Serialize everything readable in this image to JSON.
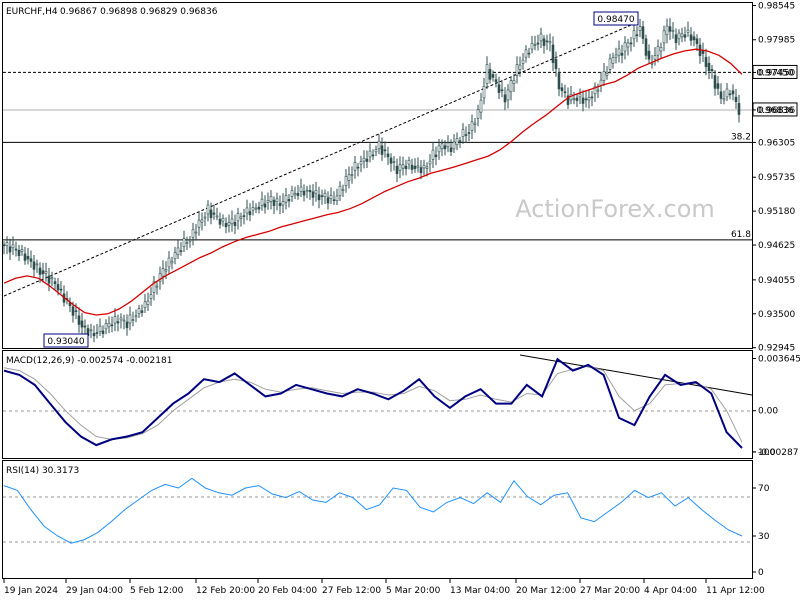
{
  "header": {
    "symbol": "EURCHF,H4",
    "ohlc": "0.96867 0.96898 0.96829 0.96836"
  },
  "watermark": "ActionForex.com",
  "colors": {
    "candles": "#2f4f4f",
    "moving_average": "#d40000",
    "macd_line": "#000080",
    "signal_line": "#a0a0a0",
    "rsi_line": "#1e90ff",
    "background": "#ffffff"
  },
  "chart_data": [
    {
      "type": "candlestick",
      "title": "EURCHF,H4",
      "ylim": [
        0.9294,
        0.9857
      ],
      "y_ticks": [
        "0.98545",
        "0.97985",
        "0.97450",
        "0.96836",
        "0.96305",
        "0.95735",
        "0.95180",
        "0.94625",
        "0.94055",
        "0.93500",
        "0.92945"
      ],
      "x_ticks": [
        "19 Jan 2024",
        "29 Jan 04:00",
        "5 Feb 12:00",
        "12 Feb 20:00",
        "20 Feb 04:00",
        "27 Feb 12:00",
        "5 Mar 20:00",
        "13 Mar 04:00",
        "20 Mar 12:00",
        "27 Mar 20:00",
        "4 Apr 04:00",
        "11 Apr 12:00"
      ],
      "series": [
        {
          "values": [
            0.9463,
            0.9458,
            0.9452,
            0.944,
            0.9425,
            0.9412,
            0.9398,
            0.9375,
            0.9355,
            0.933,
            0.9318,
            0.9322,
            0.9332,
            0.934,
            0.9335,
            0.935,
            0.9365,
            0.9395,
            0.942,
            0.944,
            0.946,
            0.9475,
            0.95,
            0.952,
            0.9505,
            0.9495,
            0.9502,
            0.9515,
            0.9522,
            0.953,
            0.9536,
            0.9528,
            0.9542,
            0.955,
            0.9552,
            0.9545,
            0.954,
            0.9535,
            0.956,
            0.9585,
            0.96,
            0.961,
            0.9625,
            0.9605,
            0.9585,
            0.9595,
            0.959,
            0.9588,
            0.961,
            0.9625,
            0.962,
            0.964,
            0.965,
            0.968,
            0.975,
            0.9725,
            0.97,
            0.974,
            0.977,
            0.979,
            0.98,
            0.979,
            0.972,
            0.97,
            0.9705,
            0.97,
            0.9715,
            0.974,
            0.977,
            0.978,
            0.98,
            0.982,
            0.976,
            0.978,
            0.982,
            0.98,
            0.981,
            0.98,
            0.977,
            0.974,
            0.97,
            0.9715,
            0.9684
          ]
        },
        {
          "name": "",
          "values": [
            0.94,
            0.9408,
            0.9412,
            0.9408,
            0.9395,
            0.938,
            0.9365,
            0.9352,
            0.9348,
            0.935,
            0.9358,
            0.937,
            0.9385,
            0.94,
            0.9412,
            0.9422,
            0.9432,
            0.9442,
            0.945,
            0.946,
            0.9468,
            0.9475,
            0.948,
            0.9485,
            0.9492,
            0.9497,
            0.9502,
            0.9507,
            0.9512,
            0.9516,
            0.9522,
            0.953,
            0.954,
            0.955,
            0.9558,
            0.9566,
            0.9572,
            0.958,
            0.9585,
            0.959,
            0.9596,
            0.9602,
            0.9608,
            0.9618,
            0.9632,
            0.9648,
            0.9662,
            0.9675,
            0.969,
            0.9705,
            0.9712,
            0.9718,
            0.9725,
            0.973,
            0.974,
            0.9752,
            0.976,
            0.9768,
            0.9775,
            0.978,
            0.9783,
            0.978,
            0.9773,
            0.976,
            0.9742
          ]
        }
      ],
      "levels": [
        {
          "value": 0.9745,
          "label": "0.97450",
          "style": "dashed"
        },
        {
          "value": 0.96836,
          "label": "0.96836",
          "style": "current"
        },
        {
          "value": 0.96305,
          "label": "38.2",
          "style": "solid"
        },
        {
          "value": 0.9471,
          "label": "61.8",
          "style": "solid"
        }
      ],
      "annotations": [
        {
          "label": "0.98470",
          "value": 0.9847
        },
        {
          "label": "0.93040",
          "value": 0.9304
        }
      ]
    },
    {
      "type": "line",
      "title": "MACD(12,26,9) -0.002574 -0.002181",
      "ylim": [
        -0.0033,
        0.0041
      ],
      "y_ticks": [
        "0.003645",
        "0.00",
        "-0.00287"
      ],
      "series": [
        {
          "name": "MACD",
          "values": [
            0.0028,
            0.0025,
            0.0018,
            0.0005,
            -0.0008,
            -0.0018,
            -0.0024,
            -0.002,
            -0.0018,
            -0.0015,
            -0.0005,
            0.0005,
            0.0012,
            0.0022,
            0.002,
            0.0026,
            0.0018,
            0.001,
            0.0012,
            0.0018,
            0.0015,
            0.0012,
            0.001,
            0.0015,
            0.0012,
            0.0008,
            0.0014,
            0.0022,
            0.001,
            0.0002,
            0.001,
            0.0015,
            0.0005,
            0.0005,
            0.0018,
            0.001,
            0.0036,
            0.0028,
            0.0032,
            0.0025,
            -0.0005,
            -0.001,
            0.001,
            0.0025,
            0.0018,
            0.002,
            0.0012,
            -0.0015,
            -0.0026
          ]
        },
        {
          "name": "Signal",
          "values": [
            0.003,
            0.0028,
            0.0022,
            0.0012,
            0.0,
            -0.001,
            -0.0018,
            -0.002,
            -0.0019,
            -0.0016,
            -0.001,
            0.0,
            0.0008,
            0.0016,
            0.002,
            0.0022,
            0.002,
            0.0015,
            0.0013,
            0.0015,
            0.0016,
            0.0014,
            0.0012,
            0.0013,
            0.0013,
            0.0011,
            0.0012,
            0.0017,
            0.0014,
            0.0007,
            0.0008,
            0.0011,
            0.0008,
            0.0006,
            0.0012,
            0.0011,
            0.0026,
            0.0029,
            0.0031,
            0.0028,
            0.001,
            0.0,
            0.0005,
            0.0018,
            0.0019,
            0.0019,
            0.0015,
            0.0,
            -0.0022
          ]
        }
      ]
    },
    {
      "type": "line",
      "title": "RSI(14) 30.3173",
      "ylim": [
        0,
        100
      ],
      "y_ticks": [
        "100",
        "70",
        "30",
        "0"
      ],
      "series": [
        {
          "name": "RSI",
          "values": [
            72,
            68,
            52,
            38,
            30,
            24,
            27,
            33,
            42,
            52,
            60,
            68,
            73,
            70,
            78,
            70,
            66,
            64,
            70,
            72,
            65,
            62,
            67,
            60,
            58,
            66,
            62,
            52,
            56,
            70,
            68,
            54,
            50,
            58,
            62,
            57,
            66,
            58,
            76,
            63,
            56,
            64,
            66,
            45,
            42,
            50,
            58,
            68,
            62,
            66,
            55,
            62,
            52,
            43,
            35,
            30
          ]
        }
      ]
    }
  ]
}
